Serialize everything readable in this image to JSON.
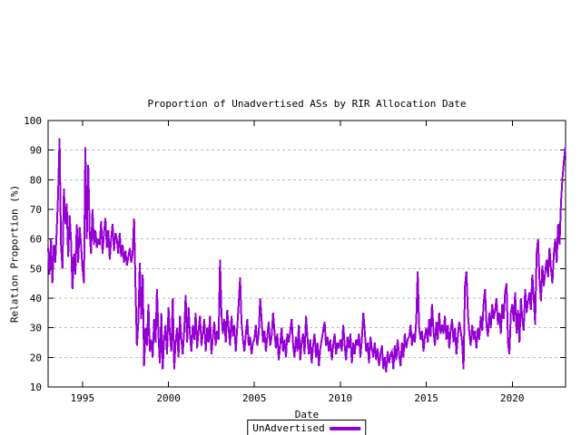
{
  "colors": {
    "line": "#9400d3",
    "grid": "#bdbdbd",
    "frame": "#000000",
    "background": "#ffffff",
    "text": "#000000"
  },
  "chart_data": {
    "type": "line",
    "title": "Proportion of Unadvertised ASs by RIR Allocation Date",
    "xlabel": "Date",
    "ylabel": "Relation Proportion (%)",
    "xlim": [
      1993,
      2023.1
    ],
    "ylim": [
      10,
      100
    ],
    "x_ticks": [
      1995,
      2000,
      2005,
      2010,
      2015,
      2020
    ],
    "y_ticks": [
      10,
      20,
      30,
      40,
      50,
      60,
      70,
      80,
      90,
      100
    ],
    "grid": "horizontal-dashed",
    "legend_position": "bottom-center-outside-box",
    "series": [
      {
        "name": "UnAdvertised",
        "color": "#9400d3",
        "x_start": 1993.0,
        "x_step": 0.0833333,
        "values": [
          57,
          48,
          60,
          45,
          58,
          52,
          63,
          75,
          94,
          58,
          50,
          77,
          65,
          72,
          54,
          68,
          60,
          43,
          55,
          48,
          65,
          52,
          64,
          58,
          50,
          45,
          91,
          60,
          85,
          62,
          55,
          70,
          58,
          63,
          57,
          60,
          58,
          66,
          55,
          62,
          67,
          57,
          63,
          53,
          60,
          65,
          56,
          62,
          60,
          55,
          62,
          54,
          58,
          52,
          56,
          51,
          54,
          57,
          52,
          55,
          67,
          43,
          24,
          32,
          52,
          33,
          48,
          17,
          30,
          24,
          38,
          22,
          26,
          20,
          33,
          25,
          43,
          28,
          18,
          35,
          16,
          26,
          31,
          21,
          37,
          28,
          22,
          40,
          16,
          25,
          30,
          20,
          34,
          26,
          21,
          29,
          41,
          25,
          37,
          28,
          22,
          31,
          26,
          35,
          23,
          29,
          34,
          24,
          28,
          33,
          22,
          30,
          25,
          34,
          21,
          27,
          32,
          24,
          29,
          26,
          53,
          35,
          28,
          33,
          25,
          36,
          30,
          24,
          34,
          27,
          31,
          22,
          30,
          38,
          47,
          32,
          26,
          22,
          28,
          33,
          24,
          27,
          21,
          25,
          26,
          31,
          24,
          28,
          40,
          33,
          25,
          29,
          22,
          27,
          32,
          24,
          27,
          35,
          29,
          23,
          28,
          19,
          24,
          30,
          22,
          26,
          20,
          28,
          25,
          29,
          33,
          24,
          20,
          27,
          22,
          31,
          19,
          25,
          28,
          21,
          34,
          27,
          21,
          26,
          18,
          24,
          28,
          20,
          25,
          17,
          23,
          26,
          29,
          32,
          24,
          27,
          22,
          26,
          19,
          24,
          28,
          21,
          25,
          23,
          26,
          22,
          31,
          24,
          19,
          27,
          23,
          28,
          18,
          25,
          21,
          26,
          24,
          28,
          20,
          26,
          35,
          29,
          22,
          25,
          18,
          27,
          23,
          20,
          25,
          19,
          23,
          17,
          21,
          24,
          16,
          20,
          15,
          22,
          18,
          21,
          22,
          16,
          24,
          19,
          26,
          21,
          17,
          25,
          20,
          28,
          23,
          26,
          27,
          31,
          24,
          28,
          25,
          33,
          49,
          30,
          26,
          29,
          22,
          27,
          30,
          25,
          33,
          27,
          38,
          29,
          24,
          32,
          26,
          35,
          28,
          31,
          28,
          34,
          26,
          31,
          23,
          29,
          33,
          25,
          30,
          21,
          27,
          32,
          29,
          25,
          16,
          44,
          49,
          35,
          28,
          24,
          31,
          26,
          29,
          23,
          30,
          26,
          34,
          29,
          38,
          43,
          31,
          27,
          35,
          30,
          38,
          33,
          36,
          40,
          31,
          35,
          28,
          38,
          33,
          42,
          45,
          25,
          21,
          35,
          38,
          32,
          42,
          28,
          36,
          25,
          40,
          33,
          29,
          43,
          35,
          39,
          42,
          36,
          48,
          40,
          31,
          55,
          60,
          46,
          39,
          51,
          44,
          49,
          53,
          47,
          57,
          50,
          45,
          55,
          60,
          52,
          65,
          58,
          72,
          80,
          86,
          91
        ]
      }
    ]
  }
}
